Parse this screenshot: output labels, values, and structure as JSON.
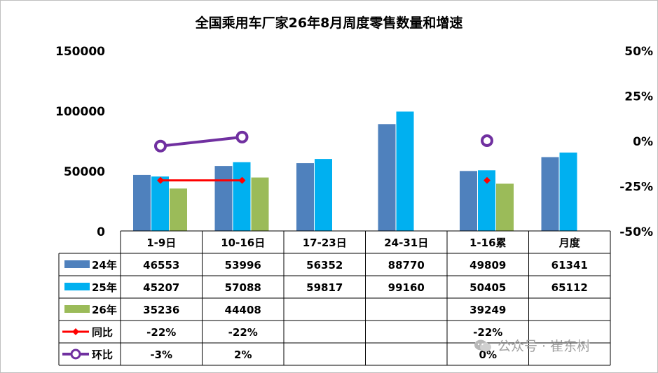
{
  "watermark": "公众号 · 崔东树",
  "chart_data": {
    "type": "bar",
    "title": "全国乘用车厂家26年8月周度零售数量和增速",
    "categories": [
      "1-9日",
      "10-16日",
      "17-23日",
      "24-31日",
      "1-16累",
      "月度"
    ],
    "left_axis": {
      "ylim": [
        0,
        150000
      ],
      "ticks": [
        "0",
        "50000",
        "100000",
        "150000"
      ]
    },
    "right_axis": {
      "ylim": [
        -50,
        50
      ],
      "ticks": [
        "-50%",
        "-25%",
        "0%",
        "25%",
        "50%"
      ]
    },
    "series": [
      {
        "name": "24年",
        "kind": "bar",
        "color": "#4F81BD",
        "values": [
          46553,
          53996,
          56352,
          88770,
          49809,
          61341
        ],
        "labels": [
          "46553",
          "53996",
          "56352",
          "88770",
          "49809",
          "61341"
        ]
      },
      {
        "name": "25年",
        "kind": "bar",
        "color": "#00B0F0",
        "values": [
          45207,
          57088,
          59817,
          99160,
          50405,
          65112
        ],
        "labels": [
          "45207",
          "57088",
          "59817",
          "99160",
          "50405",
          "65112"
        ]
      },
      {
        "name": "26年",
        "kind": "bar",
        "color": "#9BBB59",
        "values": [
          35236,
          44408,
          null,
          null,
          39249,
          null
        ],
        "labels": [
          "35236",
          "44408",
          "",
          "",
          "39249",
          ""
        ]
      },
      {
        "name": "同比",
        "kind": "line",
        "color": "#FF0000",
        "values": [
          -22,
          -22,
          null,
          null,
          -22,
          null
        ],
        "labels": [
          "-22%",
          "-22%",
          "",
          "",
          "-22%",
          ""
        ]
      },
      {
        "name": "环比",
        "kind": "line",
        "color": "#7030A0",
        "values": [
          -3,
          2,
          null,
          null,
          0,
          null
        ],
        "labels": [
          "-3%",
          "2%",
          "",
          "",
          "0%",
          ""
        ]
      }
    ],
    "legend": "data-table"
  }
}
